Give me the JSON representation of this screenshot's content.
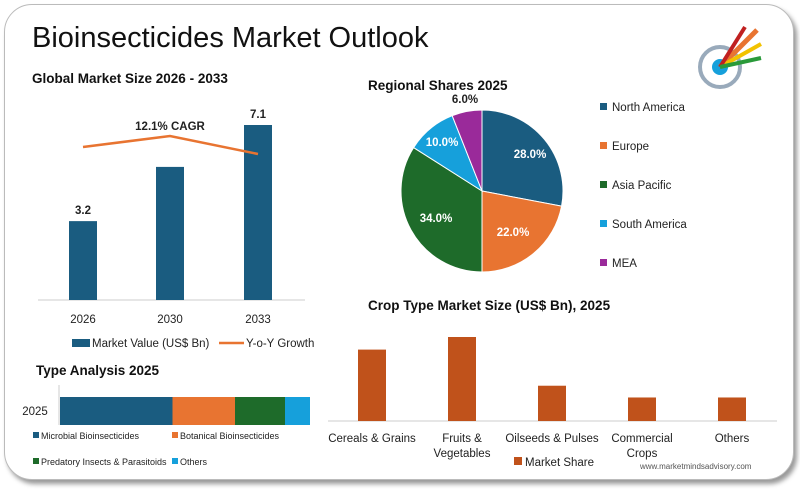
{
  "title": "Bioinsecticides Market Outlook",
  "watermark": "www.marketmindsadvisory.com",
  "chart_data": [
    {
      "type": "bar",
      "title": "Global Market Size 2026 - 2033",
      "categories": [
        "2026",
        "2030",
        "2033"
      ],
      "series": [
        {
          "name": "Market Value (US$ Bn)",
          "values": [
            3.2,
            5.4,
            7.1
          ],
          "labels": [
            "3.2",
            "",
            "7.1"
          ],
          "color": "#1a5c80"
        },
        {
          "name": "Y-o-Y Growth",
          "type": "line",
          "values": [
            0.84,
            0.9,
            0.8
          ],
          "color": "#e87431"
        }
      ],
      "annotation": "12.1% CAGR"
    },
    {
      "type": "pie",
      "title": "Regional Shares 2025",
      "categories": [
        "North America",
        "Europe",
        "Asia Pacific",
        "South America",
        "MEA"
      ],
      "values": [
        28.0,
        22.0,
        34.0,
        10.0,
        6.0
      ],
      "labels": [
        "28.0%",
        "22.0%",
        "34.0%",
        "10.0%",
        "6.0%"
      ],
      "colors": [
        "#1a5c80",
        "#e87431",
        "#1e6b2a",
        "#16a0db",
        "#9a2a9a"
      ],
      "legend": "right"
    },
    {
      "type": "bar",
      "orientation": "horizontal-stacked",
      "title": "Type Analysis 2025",
      "categories": [
        "2025"
      ],
      "series": [
        {
          "name": "Microbial Bioinsecticides",
          "values": [
            45
          ],
          "color": "#1a5c80"
        },
        {
          "name": "Botanical Bioinsecticides",
          "values": [
            25
          ],
          "color": "#e87431"
        },
        {
          "name": "Predatory Insects & Parasitoids",
          "values": [
            20
          ],
          "color": "#1e6b2a"
        },
        {
          "name": "Others",
          "values": [
            10
          ],
          "color": "#16a0db"
        }
      ]
    },
    {
      "type": "bar",
      "title": "Crop Type Market Size (US$ Bn), 2025",
      "categories": [
        "Cereals & Grains",
        "Fruits & Vegetables",
        "Oilseeds & Pulses",
        "Commercial Crops",
        "Others"
      ],
      "categories_display": [
        [
          "Cereals & Grains"
        ],
        [
          "Fruits &",
          "Vegetables"
        ],
        [
          "Oilseeds & Pulses"
        ],
        [
          "Commercial",
          "Crops"
        ],
        [
          "Others"
        ]
      ],
      "series": [
        {
          "name": "Market Share",
          "values": [
            0.85,
            1.0,
            0.42,
            0.28,
            0.28
          ],
          "color": "#c0521b"
        }
      ]
    }
  ]
}
